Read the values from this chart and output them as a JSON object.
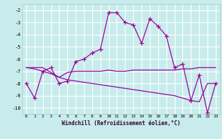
{
  "xlabel": "Windchill (Refroidissement éolien,°C)",
  "background_color": "#c8ecec",
  "grid_color": "#ffffff",
  "line_color": "#990099",
  "hours": [
    0,
    1,
    2,
    3,
    4,
    5,
    6,
    7,
    8,
    9,
    10,
    11,
    12,
    13,
    14,
    15,
    16,
    17,
    18,
    19,
    20,
    21,
    22,
    23
  ],
  "series1": [
    -8,
    -9.2,
    -7,
    -6.7,
    -8,
    -7.8,
    -6.2,
    -6.0,
    -5.5,
    -5.2,
    -2.2,
    -2.2,
    -3.0,
    -3.2,
    -4.7,
    -2.7,
    -3.3,
    -4.1,
    -6.7,
    -6.4,
    -9.4,
    -7.3,
    -10.4,
    -8.0
  ],
  "series2": [
    -6.7,
    -6.7,
    -6.7,
    -7.1,
    -7.5,
    -7.1,
    -7.0,
    -7.0,
    -7.0,
    -7.0,
    -6.9,
    -7.0,
    -7.0,
    -6.9,
    -6.9,
    -6.9,
    -6.9,
    -6.9,
    -6.9,
    -6.8,
    -6.8,
    -6.7,
    -6.7,
    -6.7
  ],
  "series3": [
    -6.7,
    -6.8,
    -7.0,
    -7.2,
    -7.5,
    -7.7,
    -7.8,
    -7.9,
    -8.0,
    -8.1,
    -8.2,
    -8.3,
    -8.4,
    -8.5,
    -8.6,
    -8.7,
    -8.8,
    -8.9,
    -9.0,
    -9.2,
    -9.4,
    -9.5,
    -8.0,
    -8.0
  ],
  "ylim": [
    -10.5,
    -1.5
  ],
  "xlim": [
    -0.5,
    23.5
  ],
  "yticks": [
    -2,
    -3,
    -4,
    -5,
    -6,
    -7,
    -8,
    -9,
    -10
  ],
  "xticks": [
    0,
    1,
    2,
    3,
    4,
    5,
    6,
    7,
    8,
    9,
    10,
    11,
    12,
    13,
    14,
    15,
    16,
    17,
    18,
    19,
    20,
    21,
    22,
    23
  ],
  "marker": "+",
  "marker_size": 4,
  "linewidth": 0.9
}
